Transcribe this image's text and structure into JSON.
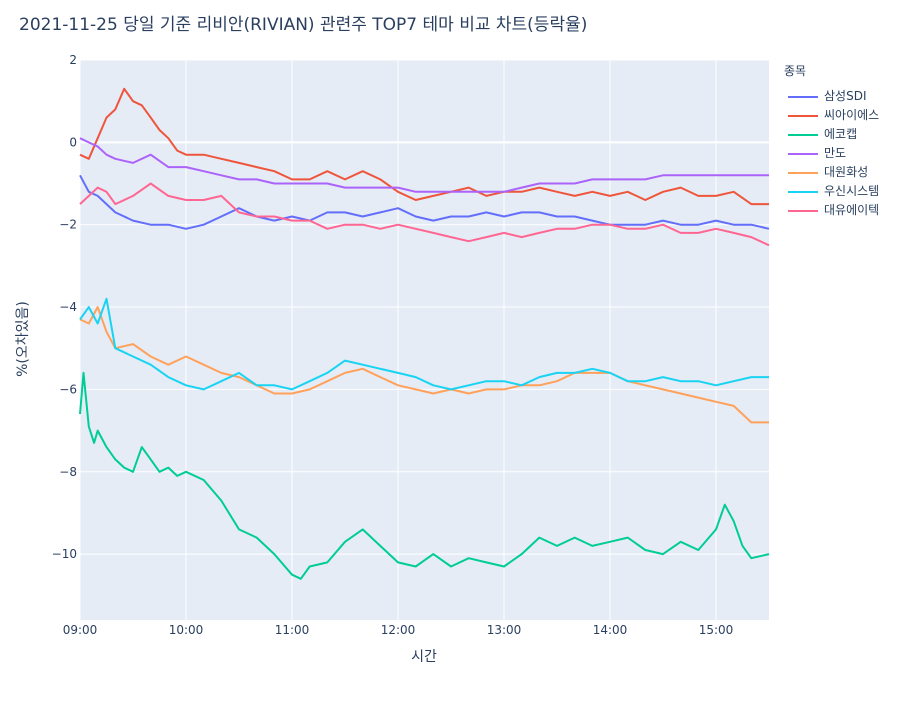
{
  "chart_data": {
    "type": "line",
    "title": "2021-11-25 당일 기준 리비안(RIVIAN) 관련주 TOP7 테마 비교 차트(등락율)",
    "xlabel": "시간",
    "ylabel": "%(오차있음)",
    "xlim": [
      "09:00",
      "15:30"
    ],
    "ylim": [
      -11.6,
      2
    ],
    "x_ticks": [
      "09:00",
      "10:00",
      "11:00",
      "12:00",
      "13:00",
      "14:00",
      "15:00"
    ],
    "y_ticks": [
      2,
      0,
      -2,
      -4,
      -6,
      -8,
      -10
    ],
    "y_tick_labels": [
      "2",
      "0",
      "−2",
      "−4",
      "−6",
      "−8",
      "−10"
    ],
    "legend_title": "종목",
    "legend_position": "top-right",
    "grid": true,
    "series": [
      {
        "name": "삼성SDI",
        "color": "#636efa",
        "x": [
          "09:00",
          "09:05",
          "09:10",
          "09:20",
          "09:30",
          "09:40",
          "09:50",
          "10:00",
          "10:10",
          "10:20",
          "10:30",
          "10:40",
          "10:50",
          "11:00",
          "11:10",
          "11:20",
          "11:30",
          "11:40",
          "11:50",
          "12:00",
          "12:10",
          "12:20",
          "12:30",
          "12:40",
          "12:50",
          "13:00",
          "13:10",
          "13:20",
          "13:30",
          "13:40",
          "13:50",
          "14:00",
          "14:10",
          "14:20",
          "14:30",
          "14:40",
          "14:50",
          "15:00",
          "15:10",
          "15:20",
          "15:30"
        ],
        "values": [
          -0.8,
          -1.2,
          -1.3,
          -1.7,
          -1.9,
          -2.0,
          -2.0,
          -2.1,
          -2.0,
          -1.8,
          -1.6,
          -1.8,
          -1.9,
          -1.8,
          -1.9,
          -1.7,
          -1.7,
          -1.8,
          -1.7,
          -1.6,
          -1.8,
          -1.9,
          -1.8,
          -1.8,
          -1.7,
          -1.8,
          -1.7,
          -1.7,
          -1.8,
          -1.8,
          -1.9,
          -2.0,
          -2.0,
          -2.0,
          -1.9,
          -2.0,
          -2.0,
          -1.9,
          -2.0,
          -2.0,
          -2.1
        ]
      },
      {
        "name": "씨아이에스",
        "color": "#ef553b",
        "x": [
          "09:00",
          "09:05",
          "09:10",
          "09:15",
          "09:20",
          "09:25",
          "09:30",
          "09:35",
          "09:40",
          "09:45",
          "09:50",
          "09:55",
          "10:00",
          "10:10",
          "10:20",
          "10:30",
          "10:40",
          "10:50",
          "11:00",
          "11:10",
          "11:20",
          "11:30",
          "11:40",
          "11:50",
          "12:00",
          "12:10",
          "12:20",
          "12:30",
          "12:40",
          "12:50",
          "13:00",
          "13:10",
          "13:20",
          "13:30",
          "13:40",
          "13:50",
          "14:00",
          "14:10",
          "14:20",
          "14:30",
          "14:40",
          "14:50",
          "15:00",
          "15:10",
          "15:20",
          "15:30"
        ],
        "values": [
          -0.3,
          -0.4,
          0.1,
          0.6,
          0.8,
          1.3,
          1.0,
          0.9,
          0.6,
          0.3,
          0.1,
          -0.2,
          -0.3,
          -0.3,
          -0.4,
          -0.5,
          -0.6,
          -0.7,
          -0.9,
          -0.9,
          -0.7,
          -0.9,
          -0.7,
          -0.9,
          -1.2,
          -1.4,
          -1.3,
          -1.2,
          -1.1,
          -1.3,
          -1.2,
          -1.2,
          -1.1,
          -1.2,
          -1.3,
          -1.2,
          -1.3,
          -1.2,
          -1.4,
          -1.2,
          -1.1,
          -1.3,
          -1.3,
          -1.2,
          -1.5,
          -1.5
        ]
      },
      {
        "name": "에코캡",
        "color": "#00cc96",
        "x": [
          "09:00",
          "09:02",
          "09:05",
          "09:08",
          "09:10",
          "09:15",
          "09:20",
          "09:25",
          "09:30",
          "09:35",
          "09:40",
          "09:45",
          "09:50",
          "09:55",
          "10:00",
          "10:10",
          "10:20",
          "10:30",
          "10:40",
          "10:50",
          "11:00",
          "11:05",
          "11:10",
          "11:20",
          "11:30",
          "11:40",
          "11:50",
          "12:00",
          "12:10",
          "12:20",
          "12:30",
          "12:40",
          "12:50",
          "13:00",
          "13:10",
          "13:20",
          "13:30",
          "13:40",
          "13:50",
          "14:00",
          "14:10",
          "14:20",
          "14:30",
          "14:40",
          "14:50",
          "15:00",
          "15:05",
          "15:10",
          "15:15",
          "15:20",
          "15:30"
        ],
        "values": [
          -6.6,
          -5.6,
          -6.9,
          -7.3,
          -7.0,
          -7.4,
          -7.7,
          -7.9,
          -8.0,
          -7.4,
          -7.7,
          -8.0,
          -7.9,
          -8.1,
          -8.0,
          -8.2,
          -8.7,
          -9.4,
          -9.6,
          -10.0,
          -10.5,
          -10.6,
          -10.3,
          -10.2,
          -9.7,
          -9.4,
          -9.8,
          -10.2,
          -10.3,
          -10.0,
          -10.3,
          -10.1,
          -10.2,
          -10.3,
          -10.0,
          -9.6,
          -9.8,
          -9.6,
          -9.8,
          -9.7,
          -9.6,
          -9.9,
          -10.0,
          -9.7,
          -9.9,
          -9.4,
          -8.8,
          -9.2,
          -9.8,
          -10.1,
          -10.0
        ]
      },
      {
        "name": "만도",
        "color": "#ab63fa",
        "x": [
          "09:00",
          "09:05",
          "09:10",
          "09:15",
          "09:20",
          "09:30",
          "09:40",
          "09:50",
          "10:00",
          "10:10",
          "10:20",
          "10:30",
          "10:40",
          "10:50",
          "11:00",
          "11:10",
          "11:20",
          "11:30",
          "11:40",
          "11:50",
          "12:00",
          "12:10",
          "12:20",
          "12:30",
          "12:40",
          "12:50",
          "13:00",
          "13:10",
          "13:20",
          "13:30",
          "13:40",
          "13:50",
          "14:00",
          "14:10",
          "14:20",
          "14:30",
          "14:40",
          "14:50",
          "15:00",
          "15:10",
          "15:20",
          "15:30"
        ],
        "values": [
          0.1,
          0.0,
          -0.1,
          -0.3,
          -0.4,
          -0.5,
          -0.3,
          -0.6,
          -0.6,
          -0.7,
          -0.8,
          -0.9,
          -0.9,
          -1.0,
          -1.0,
          -1.0,
          -1.0,
          -1.1,
          -1.1,
          -1.1,
          -1.1,
          -1.2,
          -1.2,
          -1.2,
          -1.2,
          -1.2,
          -1.2,
          -1.1,
          -1.0,
          -1.0,
          -1.0,
          -0.9,
          -0.9,
          -0.9,
          -0.9,
          -0.8,
          -0.8,
          -0.8,
          -0.8,
          -0.8,
          -0.8,
          -0.8
        ]
      },
      {
        "name": "대원화성",
        "color": "#ffa15a",
        "x": [
          "09:00",
          "09:05",
          "09:10",
          "09:15",
          "09:20",
          "09:30",
          "09:40",
          "09:50",
          "10:00",
          "10:10",
          "10:20",
          "10:30",
          "10:40",
          "10:50",
          "11:00",
          "11:10",
          "11:20",
          "11:30",
          "11:40",
          "11:50",
          "12:00",
          "12:10",
          "12:20",
          "12:30",
          "12:40",
          "12:50",
          "13:00",
          "13:10",
          "13:20",
          "13:30",
          "13:40",
          "13:50",
          "14:00",
          "14:10",
          "14:20",
          "14:30",
          "14:40",
          "14:50",
          "15:00",
          "15:10",
          "15:20",
          "15:30"
        ],
        "values": [
          -4.3,
          -4.4,
          -4.0,
          -4.6,
          -5.0,
          -4.9,
          -5.2,
          -5.4,
          -5.2,
          -5.4,
          -5.6,
          -5.7,
          -5.9,
          -6.1,
          -6.1,
          -6.0,
          -5.8,
          -5.6,
          -5.5,
          -5.7,
          -5.9,
          -6.0,
          -6.1,
          -6.0,
          -6.1,
          -6.0,
          -6.0,
          -5.9,
          -5.9,
          -5.8,
          -5.6,
          -5.6,
          -5.6,
          -5.8,
          -5.9,
          -6.0,
          -6.1,
          -6.2,
          -6.3,
          -6.4,
          -6.8,
          -6.8
        ]
      },
      {
        "name": "우신시스템",
        "color": "#19d3f3",
        "x": [
          "09:00",
          "09:05",
          "09:10",
          "09:15",
          "09:20",
          "09:30",
          "09:40",
          "09:50",
          "10:00",
          "10:10",
          "10:20",
          "10:30",
          "10:40",
          "10:50",
          "11:00",
          "11:10",
          "11:20",
          "11:30",
          "11:40",
          "11:50",
          "12:00",
          "12:10",
          "12:20",
          "12:30",
          "12:40",
          "12:50",
          "13:00",
          "13:10",
          "13:20",
          "13:30",
          "13:40",
          "13:50",
          "14:00",
          "14:10",
          "14:20",
          "14:30",
          "14:40",
          "14:50",
          "15:00",
          "15:10",
          "15:20",
          "15:30"
        ],
        "values": [
          -4.3,
          -4.0,
          -4.4,
          -3.8,
          -5.0,
          -5.2,
          -5.4,
          -5.7,
          -5.9,
          -6.0,
          -5.8,
          -5.6,
          -5.9,
          -5.9,
          -6.0,
          -5.8,
          -5.6,
          -5.3,
          -5.4,
          -5.5,
          -5.6,
          -5.7,
          -5.9,
          -6.0,
          -5.9,
          -5.8,
          -5.8,
          -5.9,
          -5.7,
          -5.6,
          -5.6,
          -5.5,
          -5.6,
          -5.8,
          -5.8,
          -5.7,
          -5.8,
          -5.8,
          -5.9,
          -5.8,
          -5.7,
          -5.7
        ]
      },
      {
        "name": "대유에이텍",
        "color": "#ff6692",
        "x": [
          "09:00",
          "09:05",
          "09:10",
          "09:15",
          "09:20",
          "09:30",
          "09:40",
          "09:50",
          "10:00",
          "10:10",
          "10:20",
          "10:30",
          "10:40",
          "10:50",
          "11:00",
          "11:10",
          "11:20",
          "11:30",
          "11:40",
          "11:50",
          "12:00",
          "12:10",
          "12:20",
          "12:30",
          "12:40",
          "12:50",
          "13:00",
          "13:10",
          "13:20",
          "13:30",
          "13:40",
          "13:50",
          "14:00",
          "14:10",
          "14:20",
          "14:30",
          "14:40",
          "14:50",
          "15:00",
          "15:10",
          "15:20",
          "15:30"
        ],
        "values": [
          -1.5,
          -1.3,
          -1.1,
          -1.2,
          -1.5,
          -1.3,
          -1.0,
          -1.3,
          -1.4,
          -1.4,
          -1.3,
          -1.7,
          -1.8,
          -1.8,
          -1.9,
          -1.9,
          -2.1,
          -2.0,
          -2.0,
          -2.1,
          -2.0,
          -2.1,
          -2.2,
          -2.3,
          -2.4,
          -2.3,
          -2.2,
          -2.3,
          -2.2,
          -2.1,
          -2.1,
          -2.0,
          -2.0,
          -2.1,
          -2.1,
          -2.0,
          -2.2,
          -2.2,
          -2.1,
          -2.2,
          -2.3,
          -2.5
        ]
      }
    ]
  }
}
